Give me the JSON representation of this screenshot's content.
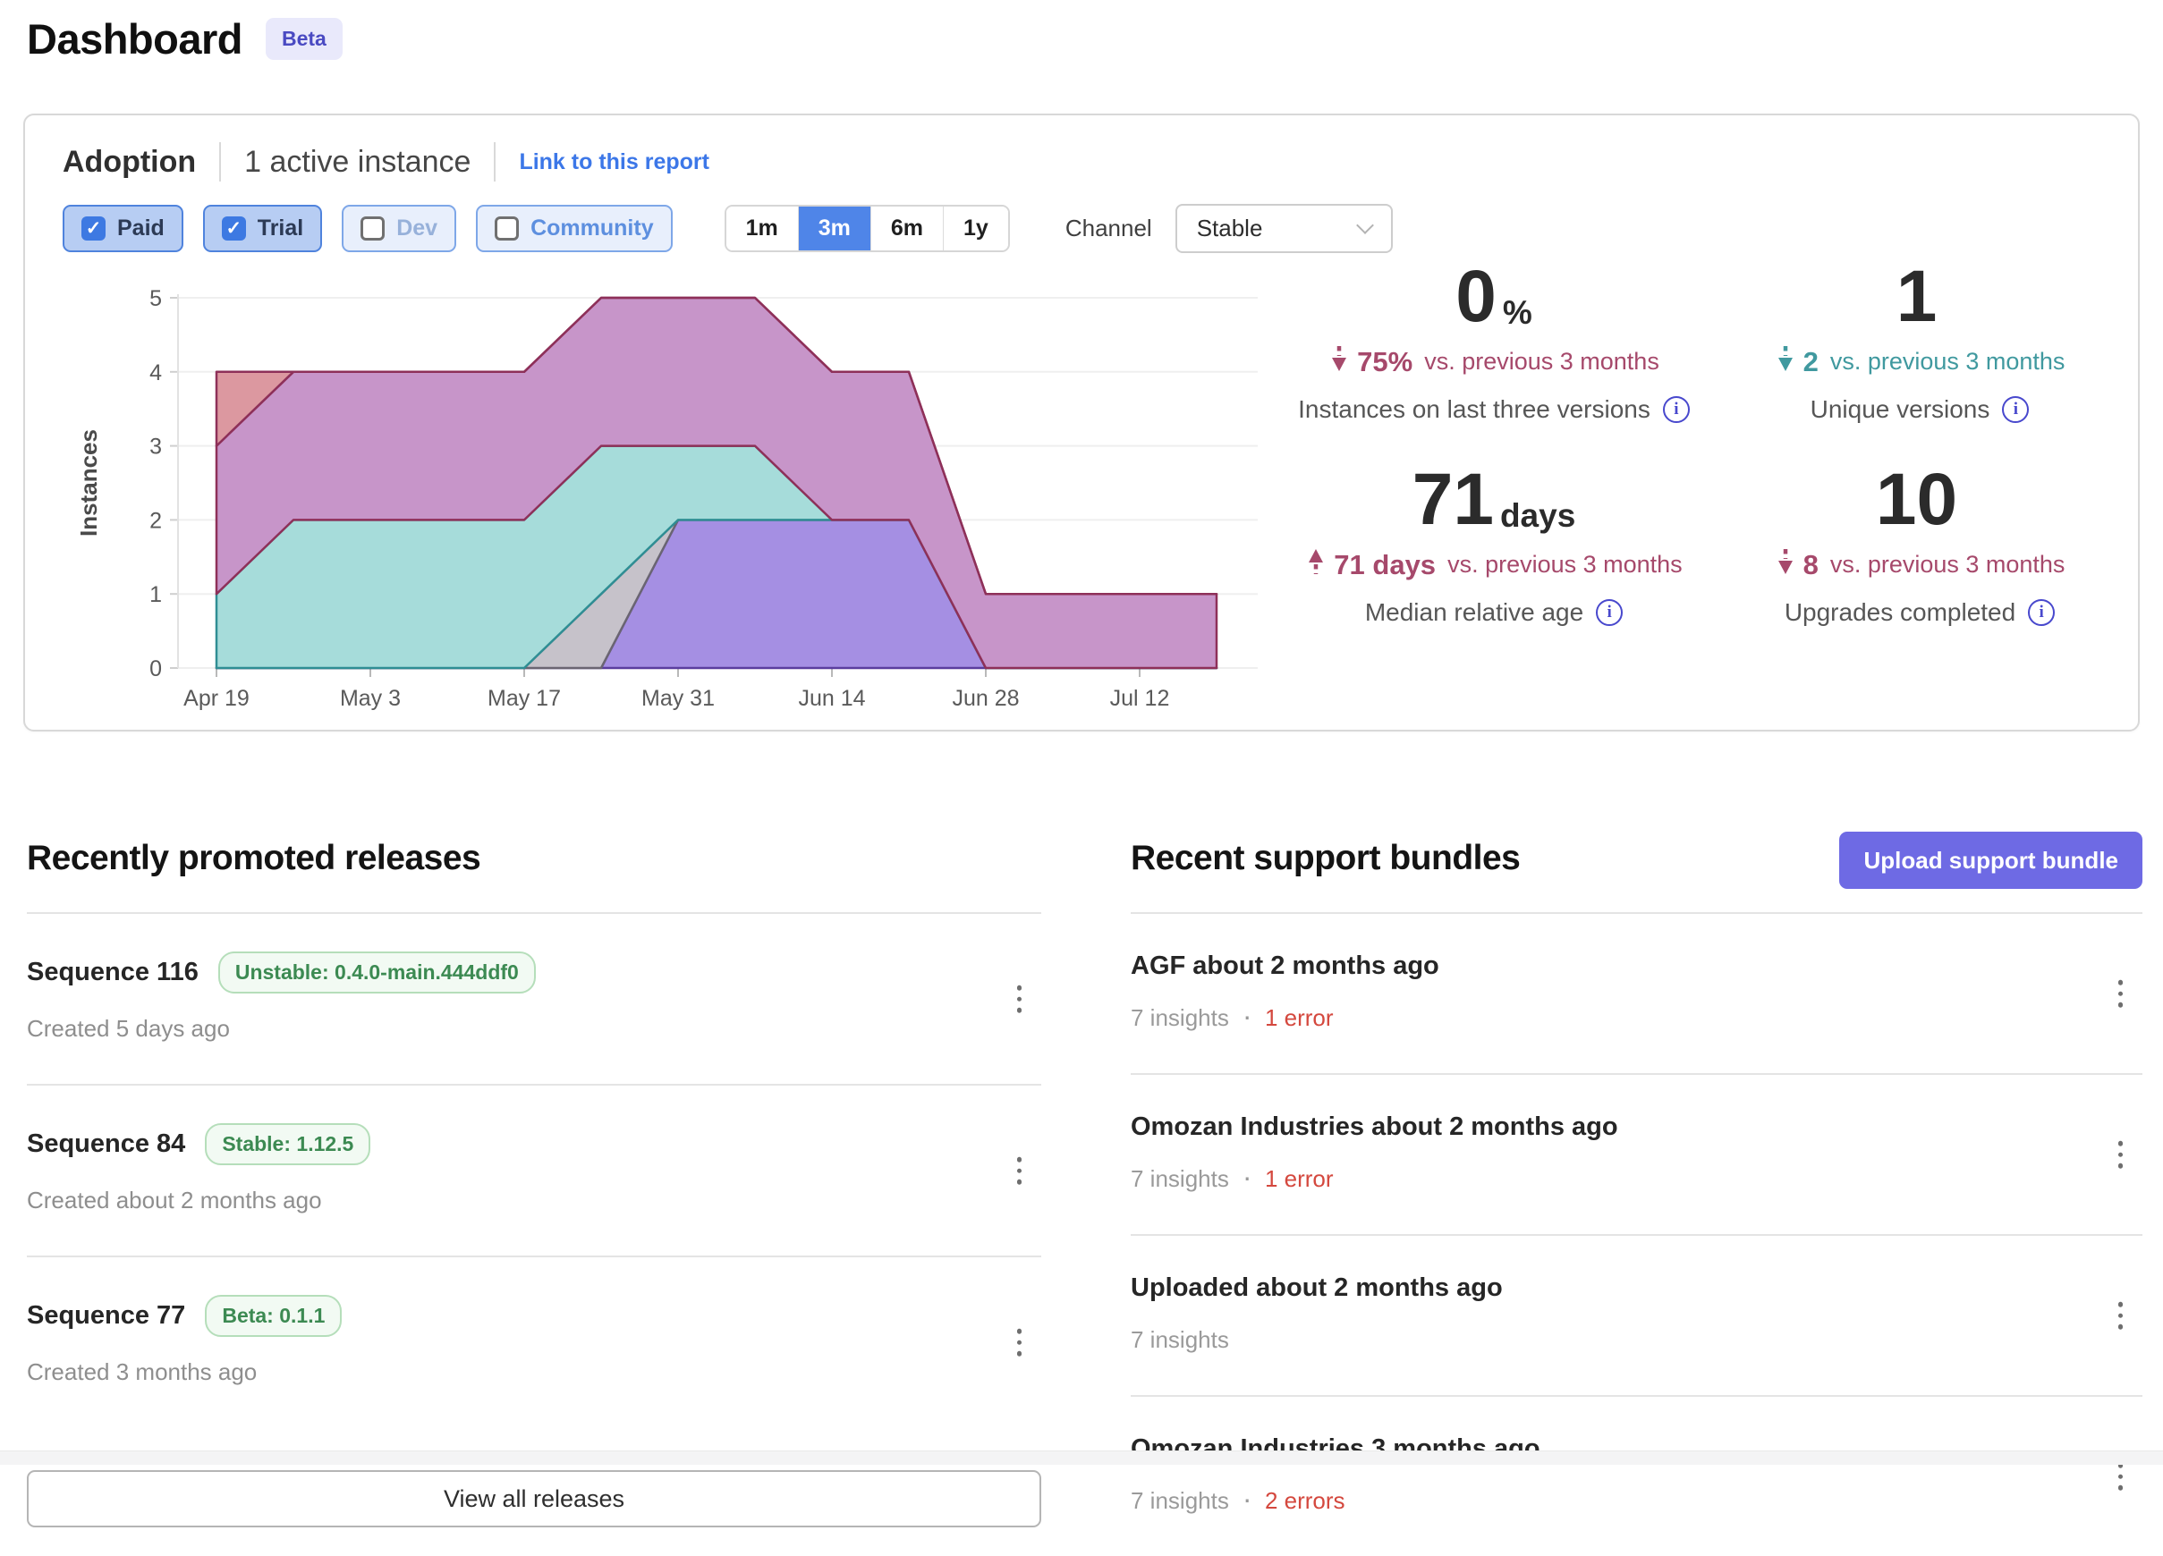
{
  "page": {
    "title": "Dashboard",
    "beta_badge": "Beta"
  },
  "adoption": {
    "title": "Adoption",
    "subtitle": "1 active instance",
    "link": "Link to this report",
    "filters": [
      {
        "label": "Paid",
        "checked": true
      },
      {
        "label": "Trial",
        "checked": true
      },
      {
        "label": "Dev",
        "checked": false
      },
      {
        "label": "Community",
        "checked": false
      }
    ],
    "ranges": [
      {
        "label": "1m",
        "selected": false
      },
      {
        "label": "3m",
        "selected": true
      },
      {
        "label": "6m",
        "selected": false
      },
      {
        "label": "1y",
        "selected": false
      }
    ],
    "channel_label": "Channel",
    "channel_value": "Stable",
    "stats": [
      {
        "value": "0",
        "unit": "%",
        "direction": "down",
        "delta": "75%",
        "suffix": "vs. previous 3 months",
        "color": "#a6496b",
        "label": "Instances on last three versions"
      },
      {
        "value": "1",
        "unit": "",
        "direction": "down",
        "delta": "2",
        "suffix": "vs. previous 3 months",
        "color": "#40999f",
        "label": "Unique versions"
      },
      {
        "value": "71",
        "unit": "days",
        "direction": "up",
        "delta": "71 days",
        "suffix": "vs. previous 3 months",
        "color": "#a6496b",
        "label": "Median relative age"
      },
      {
        "value": "10",
        "unit": "",
        "direction": "down",
        "delta": "8",
        "suffix": "vs. previous 3 months",
        "color": "#a6496b",
        "label": "Upgrades completed"
      }
    ]
  },
  "chart_data": {
    "type": "area",
    "stacked": true,
    "ylabel": "Instances",
    "ylim": [
      0,
      5
    ],
    "y_ticks": [
      0,
      1,
      2,
      3,
      4,
      5
    ],
    "grid": true,
    "legend": "none",
    "x": [
      "Apr 19",
      "Apr 26",
      "May 3",
      "May 10",
      "May 17",
      "May 24",
      "May 31",
      "Jun 7",
      "Jun 14",
      "Jun 21",
      "Jun 28",
      "Jul 5",
      "Jul 12",
      "Jul 19"
    ],
    "x_tick_indices": [
      0,
      2,
      4,
      6,
      8,
      10,
      12
    ],
    "series": [
      {
        "name": "version-area-1",
        "fill": "#a58fe3",
        "stroke": "#5a3d9e",
        "values": [
          0,
          0,
          0,
          0,
          0,
          0,
          2,
          2,
          2,
          2,
          0,
          0,
          0,
          0
        ]
      },
      {
        "name": "version-area-2",
        "fill": "#c6c2ca",
        "stroke": "#6a6572",
        "values": [
          0,
          0,
          0,
          0,
          0,
          1,
          0,
          0,
          0,
          0,
          0,
          0,
          0,
          0
        ]
      },
      {
        "name": "version-area-3",
        "fill": "#a6dcda",
        "stroke": "#2f8e94",
        "values": [
          1,
          2,
          2,
          2,
          2,
          2,
          1,
          1,
          0,
          0,
          0,
          0,
          0,
          0
        ]
      },
      {
        "name": "version-area-4",
        "fill": "#c795c9",
        "stroke": "#8e3059",
        "values": [
          2,
          2,
          2,
          2,
          2,
          2,
          2,
          2,
          2,
          2,
          1,
          1,
          1,
          1
        ]
      },
      {
        "name": "version-area-5",
        "fill": "#dc98a0",
        "stroke": "#8e3059",
        "values": [
          1,
          0,
          0,
          0,
          0,
          0,
          0,
          0,
          0,
          0,
          0,
          0,
          0,
          0
        ]
      }
    ]
  },
  "releases": {
    "heading": "Recently promoted releases",
    "items": [
      {
        "name": "Sequence 116",
        "badge": "Unstable: 0.4.0-main.444ddf0",
        "created": "Created 5 days ago"
      },
      {
        "name": "Sequence 84",
        "badge": "Stable: 1.12.5",
        "created": "Created about 2 months ago"
      },
      {
        "name": "Sequence 77",
        "badge": "Beta: 0.1.1",
        "created": "Created 3 months ago"
      }
    ],
    "view_all": "View all releases"
  },
  "bundles": {
    "heading": "Recent support bundles",
    "upload_button": "Upload support bundle",
    "items": [
      {
        "title": "AGF about 2 months ago",
        "insights": "7 insights",
        "errors": "1 error"
      },
      {
        "title": "Omozan Industries about 2 months ago",
        "insights": "7 insights",
        "errors": "1 error"
      },
      {
        "title": "Uploaded about 2 months ago",
        "insights": "7 insights",
        "errors": ""
      },
      {
        "title": "Omozan Industries 3 months ago",
        "insights": "7 insights",
        "errors": "2 errors"
      }
    ]
  },
  "colors": {
    "accent_blue": "#4f85e8",
    "link_blue": "#3c77e8",
    "indigo_button": "#6e6ae4",
    "rose": "#a6496b",
    "teal": "#40999f",
    "error_red": "#d4483e",
    "badge_green": "#3c8a52"
  }
}
